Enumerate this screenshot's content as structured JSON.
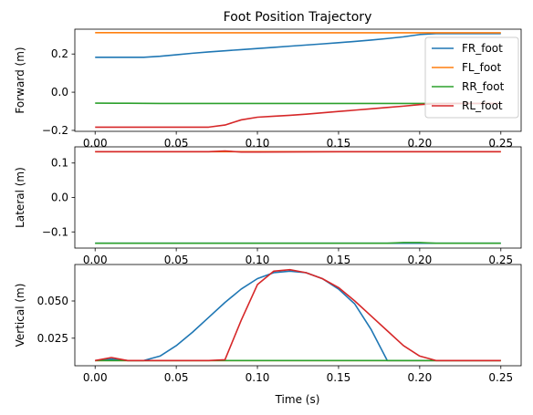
{
  "figure_title": "Foot Position Trajectory",
  "xlabel": "Time (s)",
  "colors": {
    "FR_foot": "#1f77b4",
    "FL_foot": "#ff7f0e",
    "RR_foot": "#2ca02c",
    "RL_foot": "#d62728"
  },
  "chart_data": [
    {
      "type": "line",
      "title": "Foot Position Trajectory",
      "ylabel": "Forward (m)",
      "xlabel": "",
      "xlim": [
        -0.0125,
        0.2625
      ],
      "ylim": [
        -0.205,
        0.33
      ],
      "xticks": [
        0.0,
        0.05,
        0.1,
        0.15,
        0.2,
        0.25
      ],
      "yticks": [
        -0.2,
        0.0,
        0.2
      ],
      "ytick_labels": [
        "−0.2",
        "0.0",
        "0.2"
      ],
      "grid": false,
      "legend": "right",
      "legend_entries": [
        "FR_foot",
        "FL_foot",
        "RR_foot",
        "RL_foot"
      ],
      "series": [
        {
          "name": "FR_foot",
          "x": [
            0.0,
            0.01,
            0.02,
            0.03,
            0.04,
            0.05,
            0.06,
            0.07,
            0.08,
            0.09,
            0.1,
            0.11,
            0.12,
            0.13,
            0.14,
            0.15,
            0.16,
            0.17,
            0.18,
            0.19,
            0.2,
            0.21,
            0.22,
            0.23,
            0.24,
            0.25
          ],
          "y": [
            0.183,
            0.183,
            0.183,
            0.183,
            0.188,
            0.196,
            0.204,
            0.211,
            0.217,
            0.223,
            0.229,
            0.235,
            0.241,
            0.247,
            0.253,
            0.259,
            0.266,
            0.273,
            0.281,
            0.29,
            0.302,
            0.307,
            0.307,
            0.307,
            0.307,
            0.307
          ]
        },
        {
          "name": "FL_foot",
          "x": [
            0.0,
            0.05,
            0.1,
            0.15,
            0.2,
            0.25
          ],
          "y": [
            0.312,
            0.311,
            0.311,
            0.311,
            0.311,
            0.311
          ]
        },
        {
          "name": "RR_foot",
          "x": [
            0.0,
            0.02,
            0.04,
            0.1,
            0.15,
            0.2,
            0.25
          ],
          "y": [
            -0.057,
            -0.058,
            -0.059,
            -0.059,
            -0.059,
            -0.059,
            -0.059
          ]
        },
        {
          "name": "RL_foot",
          "x": [
            0.0,
            0.01,
            0.02,
            0.03,
            0.04,
            0.05,
            0.06,
            0.07,
            0.08,
            0.09,
            0.1,
            0.11,
            0.12,
            0.13,
            0.14,
            0.15,
            0.16,
            0.17,
            0.18,
            0.19,
            0.2,
            0.21,
            0.22,
            0.23,
            0.24,
            0.25
          ],
          "y": [
            -0.183,
            -0.183,
            -0.183,
            -0.183,
            -0.183,
            -0.183,
            -0.183,
            -0.183,
            -0.172,
            -0.145,
            -0.131,
            -0.126,
            -0.121,
            -0.115,
            -0.108,
            -0.101,
            -0.094,
            -0.087,
            -0.08,
            -0.073,
            -0.065,
            -0.06,
            -0.059,
            -0.059,
            -0.059,
            -0.059
          ]
        }
      ]
    },
    {
      "type": "line",
      "title": "",
      "ylabel": "Lateral (m)",
      "xlabel": "",
      "xlim": [
        -0.0125,
        0.2625
      ],
      "ylim": [
        -0.147,
        0.147
      ],
      "xticks": [
        0.0,
        0.05,
        0.1,
        0.15,
        0.2,
        0.25
      ],
      "yticks": [
        -0.1,
        0.0,
        0.1
      ],
      "ytick_labels": [
        "−0.1",
        "0.0",
        "0.1"
      ],
      "grid": false,
      "series": [
        {
          "name": "FR_foot",
          "x": [
            0.0,
            0.25
          ],
          "y": [
            -0.133,
            -0.133
          ]
        },
        {
          "name": "FL_foot",
          "x": [
            0.0,
            0.25
          ],
          "y": [
            0.133,
            0.133
          ]
        },
        {
          "name": "RR_foot",
          "x": [
            0.0,
            0.05,
            0.1,
            0.15,
            0.18,
            0.19,
            0.2,
            0.21,
            0.25
          ],
          "y": [
            -0.133,
            -0.133,
            -0.133,
            -0.133,
            -0.133,
            -0.131,
            -0.131,
            -0.133,
            -0.133
          ]
        },
        {
          "name": "RL_foot",
          "x": [
            0.0,
            0.05,
            0.07,
            0.08,
            0.09,
            0.1,
            0.15,
            0.2,
            0.25
          ],
          "y": [
            0.133,
            0.133,
            0.133,
            0.135,
            0.132,
            0.132,
            0.133,
            0.133,
            0.133
          ]
        }
      ]
    },
    {
      "type": "line",
      "title": "",
      "ylabel": "Vertical (m)",
      "xlabel": "Time (s)",
      "xlim": [
        -0.0125,
        0.2625
      ],
      "ylim": [
        0.0065,
        0.0745
      ],
      "xticks": [
        0.0,
        0.05,
        0.1,
        0.15,
        0.2,
        0.25
      ],
      "yticks": [
        0.025,
        0.05
      ],
      "ytick_labels": [
        "0.025",
        "0.050"
      ],
      "grid": false,
      "series": [
        {
          "name": "FR_foot",
          "x": [
            0.0,
            0.01,
            0.02,
            0.03,
            0.04,
            0.05,
            0.06,
            0.07,
            0.08,
            0.09,
            0.1,
            0.11,
            0.12,
            0.13,
            0.14,
            0.15,
            0.16,
            0.17,
            0.18,
            0.19,
            0.2,
            0.21,
            0.22,
            0.23,
            0.24,
            0.25
          ],
          "y": [
            0.01,
            0.011,
            0.01,
            0.01,
            0.013,
            0.02,
            0.029,
            0.039,
            0.049,
            0.058,
            0.065,
            0.069,
            0.07,
            0.069,
            0.065,
            0.058,
            0.048,
            0.031,
            0.01,
            0.01,
            0.01,
            0.01,
            0.01,
            0.01,
            0.01,
            0.01
          ]
        },
        {
          "name": "FL_foot",
          "x": [
            0.0,
            0.05,
            0.1,
            0.15,
            0.2,
            0.25
          ],
          "y": [
            0.01,
            0.01,
            0.01,
            0.01,
            0.01,
            0.01
          ]
        },
        {
          "name": "RR_foot",
          "x": [
            0.0,
            0.05,
            0.08,
            0.1,
            0.15,
            0.2,
            0.25
          ],
          "y": [
            0.01,
            0.01,
            0.01,
            0.01,
            0.01,
            0.01,
            0.01
          ]
        },
        {
          "name": "RL_foot",
          "x": [
            0.0,
            0.01,
            0.02,
            0.03,
            0.04,
            0.05,
            0.06,
            0.07,
            0.08,
            0.09,
            0.1,
            0.11,
            0.12,
            0.13,
            0.14,
            0.15,
            0.16,
            0.17,
            0.18,
            0.19,
            0.2,
            0.21,
            0.22,
            0.23,
            0.24,
            0.25
          ],
          "y": [
            0.01,
            0.012,
            0.01,
            0.01,
            0.01,
            0.01,
            0.01,
            0.01,
            0.0105,
            0.037,
            0.061,
            0.07,
            0.071,
            0.069,
            0.065,
            0.059,
            0.05,
            0.04,
            0.03,
            0.02,
            0.013,
            0.01,
            0.01,
            0.01,
            0.01,
            0.01
          ]
        }
      ]
    }
  ]
}
